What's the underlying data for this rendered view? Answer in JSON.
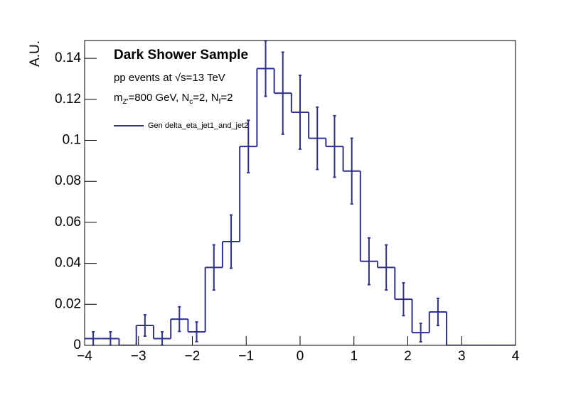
{
  "chart_data": {
    "type": "histogram",
    "title": "Dark Shower Sample",
    "annotations": [
      "pp events at √s=13 TeV"
    ],
    "mass_label": [
      "m",
      "Z'",
      "=800 GeV, N",
      "c",
      "=2, N",
      "f",
      "=2"
    ],
    "y_label": "A.U.",
    "series": [
      {
        "name": "Gen delta_eta_jet1_and_jet2",
        "color": "#2e3192",
        "bins": [
          -4,
          -3.68,
          -3.36,
          -3.04,
          -2.72,
          -2.4,
          -2.08,
          -1.76,
          -1.44,
          -1.12,
          -0.8,
          -0.48,
          -0.16,
          0.16,
          0.48,
          0.8,
          1.12,
          1.44,
          1.76,
          2.08,
          2.4,
          2.72,
          3.04,
          3.36,
          3.68,
          4
        ],
        "values": [
          0.0033,
          0.0033,
          0,
          0.0097,
          0.0033,
          0.0128,
          0.0066,
          0.038,
          0.0506,
          0.097,
          0.135,
          0.123,
          0.1137,
          0.101,
          0.097,
          0.085,
          0.041,
          0.038,
          0.0225,
          0.0062,
          0.0163,
          0,
          0,
          0,
          0
        ],
        "errors": [
          0.0033,
          0.0033,
          0,
          0.0052,
          0.0033,
          0.006,
          0.0048,
          0.011,
          0.013,
          0.0128,
          0.0135,
          0.02,
          0.018,
          0.0152,
          0.015,
          0.016,
          0.0114,
          0.011,
          0.008,
          0.0045,
          0.0066,
          0,
          0,
          0,
          0
        ]
      }
    ],
    "xlim": [
      -4,
      4
    ],
    "xticks": [
      {
        "value": -4,
        "label": "−4"
      },
      {
        "value": -3,
        "label": "−3"
      },
      {
        "value": -2,
        "label": "−2"
      },
      {
        "value": -1,
        "label": "−1"
      },
      0,
      1,
      2,
      3,
      4
    ],
    "ylim": [
      0,
      0.1487
    ],
    "yticks": [
      0,
      0.02,
      0.04,
      0.06,
      0.08,
      0.1,
      0.12,
      0.14
    ]
  }
}
